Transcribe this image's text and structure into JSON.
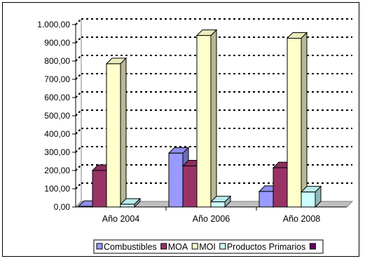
{
  "chart_data": {
    "type": "bar",
    "categories": [
      "Año 2004",
      "Año 2006",
      "Año 2008"
    ],
    "series": [
      {
        "name": "Combustibles",
        "values": [
          3,
          295,
          85
        ],
        "color": "#9999ff"
      },
      {
        "name": "MOA",
        "values": [
          200,
          225,
          215
        ],
        "color": "#993366"
      },
      {
        "name": "MOI",
        "values": [
          785,
          940,
          925
        ],
        "color": "#ffffcc"
      },
      {
        "name": "Productos Primarios",
        "values": [
          15,
          28,
          82
        ],
        "color": "#ccffff"
      },
      {
        "name": "",
        "values": [
          null,
          null,
          null
        ],
        "color": "#660066"
      }
    ],
    "y_ticks": [
      "0,00",
      "100,00",
      "200,00",
      "300,00",
      "400,00",
      "500,00",
      "600,00",
      "700,00",
      "800,00",
      "900,00",
      "1.000,00"
    ],
    "ylim": [
      0,
      1000
    ],
    "grid": "dotted horizontal",
    "legend": "bottom",
    "style": "3d-clustered-column"
  }
}
